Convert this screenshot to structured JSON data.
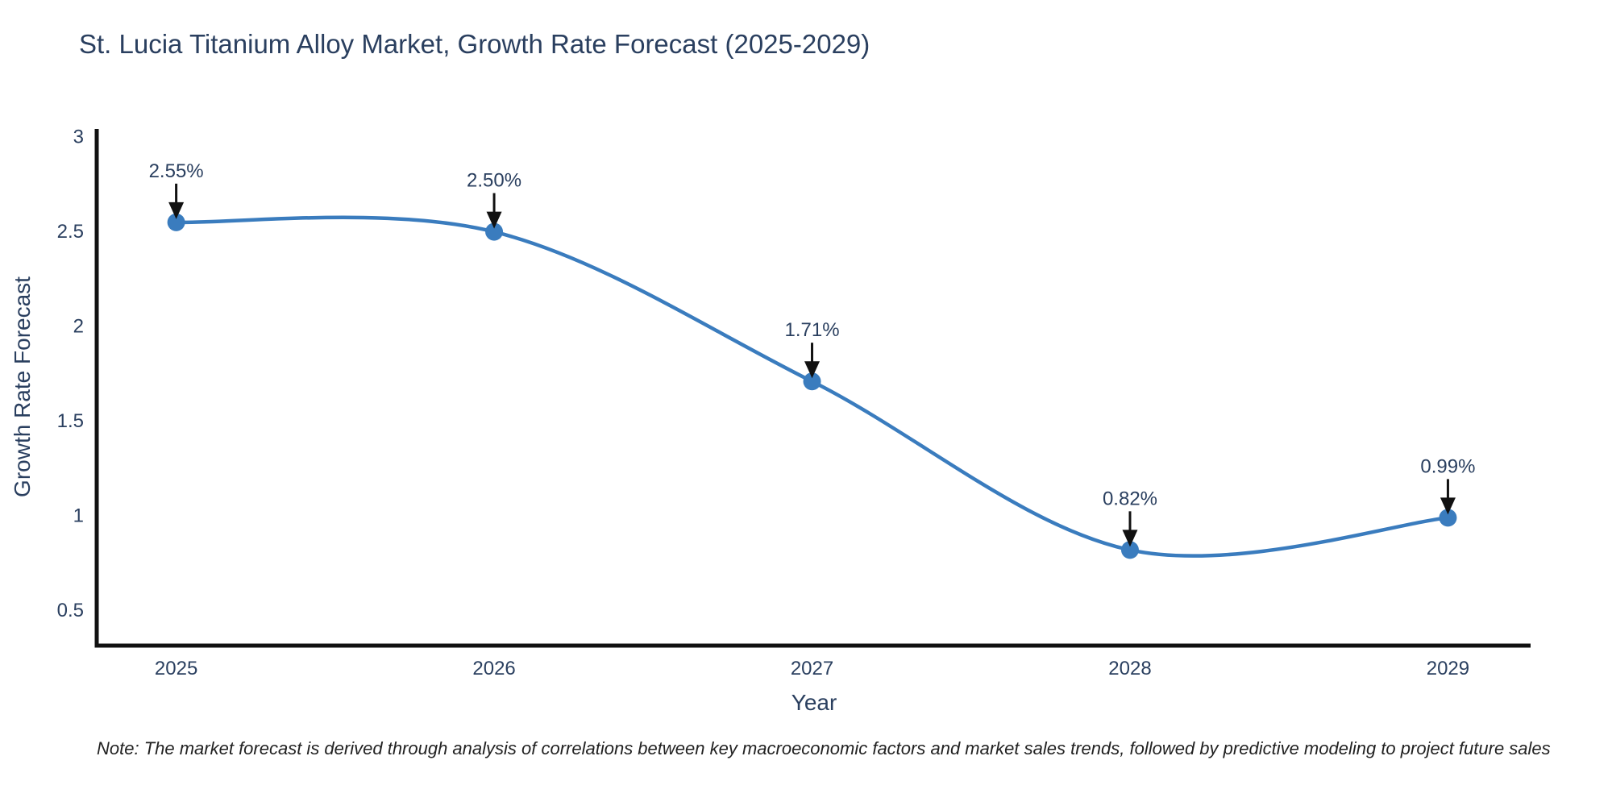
{
  "chart_data": {
    "type": "line",
    "title": "St. Lucia Titanium Alloy Market, Growth Rate Forecast (2025-2029)",
    "xlabel": "Year",
    "ylabel": "Growth Rate Forecast",
    "categories": [
      2025,
      2026,
      2027,
      2028,
      2029
    ],
    "values": [
      2.55,
      2.5,
      1.71,
      0.82,
      0.99
    ],
    "point_labels": [
      "2.55%",
      "2.50%",
      "1.71%",
      "0.82%",
      "0.99%"
    ],
    "x_tick_labels": [
      "2025",
      "2026",
      "2027",
      "2028",
      "2029"
    ],
    "y_ticks": [
      0.5,
      1,
      1.5,
      2,
      2.5,
      3
    ],
    "y_tick_labels": [
      "0.5",
      "1",
      "1.5",
      "2",
      "2.5",
      "3"
    ],
    "xlim": [
      2024.75,
      2029.26
    ],
    "ylim": [
      0.315,
      3.043
    ],
    "grid": false,
    "legend": "none",
    "line_shape": "spline",
    "annotations_have_arrows": true,
    "colors": {
      "line": "#3a7cbe",
      "marker": "#3a7cbe",
      "axis": "#111111",
      "tick_text": "#2a3f5f",
      "title_text": "#2a3f5f",
      "annotation_text": "#2a3f5f",
      "arrow": "#111111"
    }
  },
  "note": {
    "text": "Note: The market forecast is derived through analysis of correlations between key macroeconomic factors and market sales trends, followed by predictive modeling to project future sales"
  }
}
